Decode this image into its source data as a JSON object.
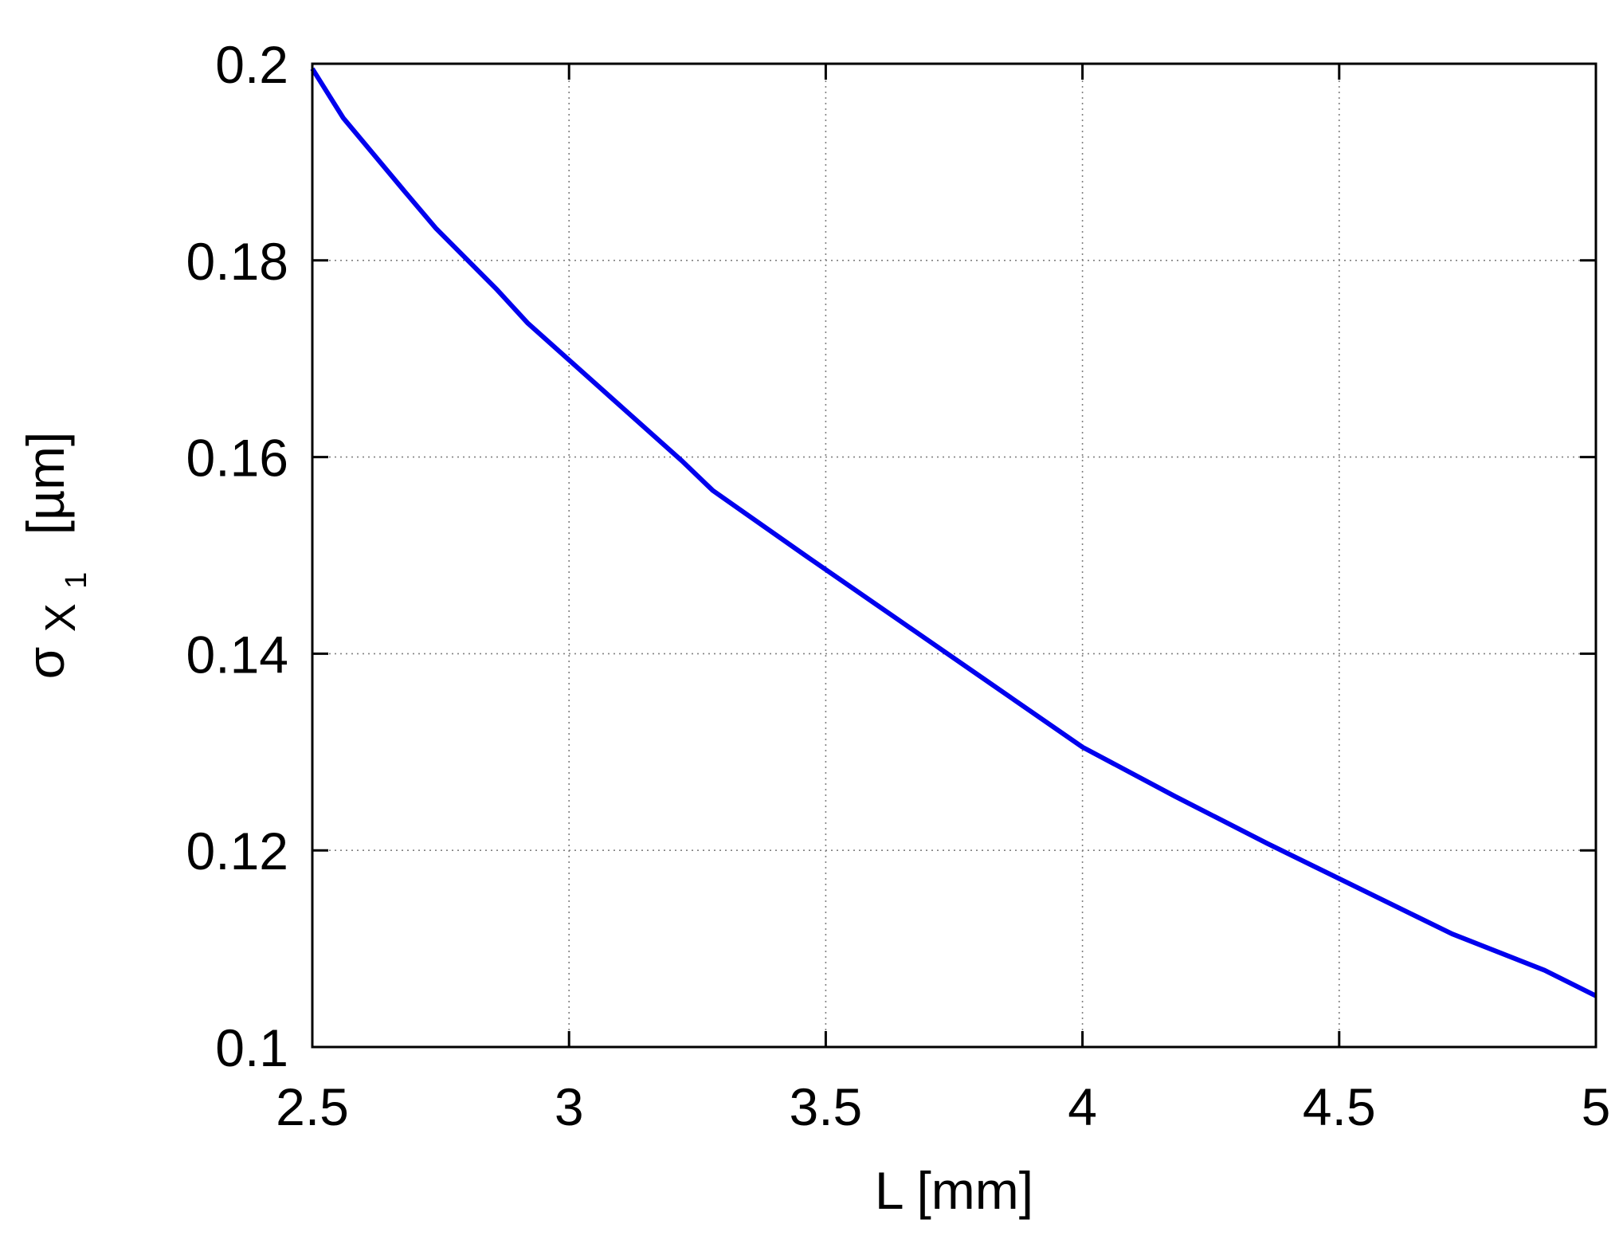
{
  "chart_data": {
    "type": "line",
    "title": "",
    "xlabel": "L [mm]",
    "ylabel": {
      "symbol": "σ",
      "sub_main": "X",
      "sub_sub": "1",
      "unit": "[µm]"
    },
    "xlim": [
      2.5,
      5
    ],
    "ylim": [
      0.1,
      0.2
    ],
    "xticks": [
      2.5,
      3,
      3.5,
      4,
      4.5,
      5
    ],
    "xtick_labels": [
      "2.5",
      "3",
      "3.5",
      "4",
      "4.5",
      "5"
    ],
    "yticks": [
      0.1,
      0.12,
      0.14,
      0.16,
      0.18,
      0.2
    ],
    "ytick_labels": [
      "0.1",
      "0.12",
      "0.14",
      "0.16",
      "0.18",
      "0.2"
    ],
    "grid": true,
    "legend": "none",
    "series": [
      {
        "color": "#0000ee",
        "x": [
          2.5,
          2.56,
          2.68,
          2.74,
          2.86,
          2.92,
          3.04,
          3.1,
          3.22,
          3.28,
          3.46,
          3.64,
          3.82,
          4.0,
          4.18,
          4.36,
          4.54,
          4.72,
          4.9,
          5.0
        ],
        "y": [
          0.1995,
          0.1945,
          0.187,
          0.1833,
          0.177,
          0.1736,
          0.168,
          0.1652,
          0.1596,
          0.1566,
          0.15,
          0.1435,
          0.137,
          0.1305,
          0.1255,
          0.1207,
          0.1161,
          0.1115,
          0.1078,
          0.1052
        ]
      }
    ]
  }
}
